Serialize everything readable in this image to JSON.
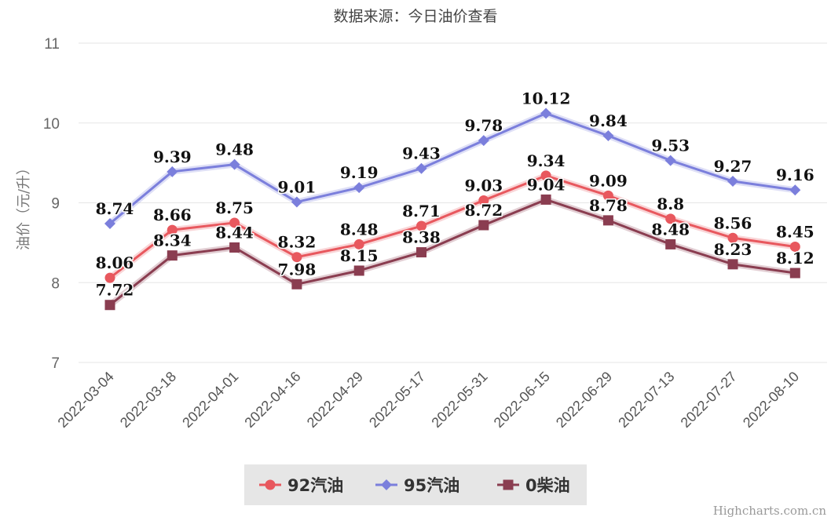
{
  "chart_data": {
    "type": "line",
    "subtitle": "数据来源：今日油价查看",
    "ylabel": "油价（元/升）",
    "xlabel": "",
    "ylim": [
      7,
      11
    ],
    "yticks": [
      7,
      8,
      9,
      10,
      11
    ],
    "grid": true,
    "legend_position": "bottom-center",
    "categories": [
      "2022-03-04",
      "2022-03-18",
      "2022-04-01",
      "2022-04-16",
      "2022-04-29",
      "2022-05-17",
      "2022-05-31",
      "2022-06-15",
      "2022-06-29",
      "2022-07-13",
      "2022-07-27",
      "2022-08-10"
    ],
    "series": [
      {
        "name": "92汽油",
        "color": "#e8585e",
        "marker": "circle",
        "values": [
          8.06,
          8.66,
          8.75,
          8.32,
          8.48,
          8.71,
          9.03,
          9.34,
          9.09,
          8.8,
          8.56,
          8.45
        ],
        "labels": [
          "8.06",
          "8.66",
          "8.75",
          "8.32",
          "8.48",
          "8.71",
          "9.03",
          "9.34",
          "9.09",
          "8.8",
          "8.56",
          "8.45"
        ]
      },
      {
        "name": "95汽油",
        "color": "#7b7fdc",
        "marker": "diamond",
        "values": [
          8.74,
          9.39,
          9.48,
          9.01,
          9.19,
          9.43,
          9.78,
          10.12,
          9.84,
          9.53,
          9.27,
          9.16
        ],
        "labels": [
          "8.74",
          "9.39",
          "9.48",
          "9.01",
          "9.19",
          "9.43",
          "9.78",
          "10.12",
          "9.84",
          "9.53",
          "9.27",
          "9.16"
        ]
      },
      {
        "name": "0柴油",
        "color": "#8a3d50",
        "marker": "square",
        "values": [
          7.72,
          8.34,
          8.44,
          7.98,
          8.15,
          8.38,
          8.72,
          9.04,
          8.78,
          8.48,
          8.23,
          8.12
        ],
        "labels": [
          "7.72",
          "8.34",
          "8.44",
          "7.98",
          "8.15",
          "8.38",
          "8.72",
          "9.04",
          "8.78",
          "8.48",
          "8.23",
          "8.12"
        ]
      }
    ]
  },
  "credits": "Highcharts.com.cn",
  "colors": {
    "grid": "#e6e6e6",
    "legend_bg": "#e6e6e6"
  }
}
